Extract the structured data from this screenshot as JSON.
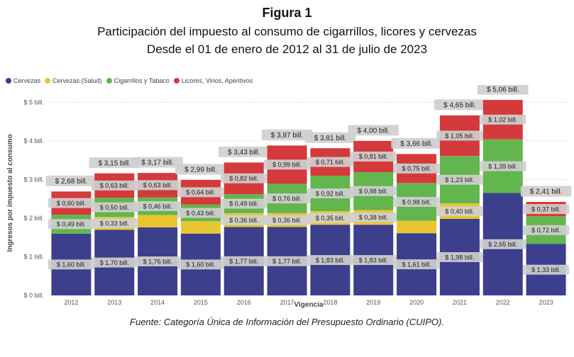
{
  "figure_label": "Figura 1",
  "title": "Participación del impuesto al consumo de cigarrillos, licores y cervezas",
  "subtitle": "Desde el 01 de enero de 2012 al 31 de julio de 2023",
  "source": "Fuente: Categoría Única de Información del Presupuesto Ordinario (CUIPO).",
  "chart_data": {
    "type": "bar",
    "stacked": true,
    "xlabel": "Vigencia",
    "ylabel": "Ingresos por impuesto al consumo",
    "ylim": [
      0,
      5.3
    ],
    "yticks": [
      0,
      1,
      2,
      3,
      4,
      5
    ],
    "ytick_labels": [
      "$ 0 bill.",
      "$ 1 bill.",
      "$ 2 bill.",
      "$ 3 bill.",
      "$ 4 bill.",
      "$ 5 bill."
    ],
    "grid": true,
    "legend_position": "top-left",
    "categories": [
      "2012",
      "2013",
      "2014",
      "2015",
      "2016",
      "2017",
      "2018",
      "2019",
      "2020",
      "2021",
      "2022",
      "2023"
    ],
    "series": [
      {
        "name": "Cervezas",
        "color": "#3b3f8c",
        "values": [
          1.6,
          1.7,
          1.76,
          1.6,
          1.77,
          1.77,
          1.83,
          1.83,
          1.61,
          1.98,
          2.65,
          1.33
        ],
        "labels": [
          "$ 1,60 bill.",
          "$ 1,70 bill.",
          "$ 1,76 bill.",
          "$ 1,60 bill.",
          "$ 1,77 bill.",
          "$ 1,77 bill.",
          "$ 1,83 bill.",
          "$ 1,83 bill.",
          "$ 1,61 bill.",
          "$ 1,98 bill.",
          "$ 2,65 bill.",
          "$ 1,33 bill."
        ]
      },
      {
        "name": "Cervezas (Salud)",
        "color": "#e9c631",
        "values": [
          0.0,
          0.33,
          0.32,
          0.32,
          0.36,
          0.36,
          0.35,
          0.38,
          0.32,
          0.4,
          0.0,
          0.0
        ],
        "labels": [
          "",
          "$ 0,33 bill.",
          "",
          "",
          "$ 0,36 bill.",
          "$ 0,36 bill.",
          "$ 0,35 bill.",
          "$ 0,38 bill.",
          "",
          "$ 0,40 bill.",
          "",
          ""
        ]
      },
      {
        "name": "Cigarrillos y Tabaco",
        "color": "#63b54e",
        "values": [
          0.49,
          0.5,
          0.46,
          0.43,
          0.49,
          0.76,
          0.92,
          0.98,
          0.98,
          1.23,
          1.39,
          0.72
        ],
        "labels": [
          "$ 0,49 bill.",
          "$ 0,50 bill.",
          "$ 0,46 bill.",
          "$ 0,43 bill.",
          "$ 0,49 bill.",
          "$ 0,76 bill.",
          "$ 0,92 bill.",
          "$ 0,98 bill.",
          "$ 0,98 bill.",
          "$ 1,23 bill.",
          "$ 1,39 bill.",
          "$ 0,72 bill."
        ]
      },
      {
        "name": "Licores, Vinos, Aperitivos",
        "color": "#d43a3c",
        "values": [
          0.6,
          0.63,
          0.63,
          0.64,
          0.82,
          0.99,
          0.71,
          0.81,
          0.75,
          1.05,
          1.02,
          0.37
        ],
        "labels": [
          "$ 0,60 bill.",
          "$ 0,63 bill.",
          "$ 0,63 bill.",
          "$ 0,64 bill.",
          "$ 0,82 bill.",
          "$ 0,99 bill.",
          "$ 0,71 bill.",
          "$ 0,81 bill.",
          "$ 0,75 bill.",
          "$ 1,05 bill.",
          "$ 1,02 bill.",
          "$ 0,37 bill."
        ]
      }
    ],
    "totals": [
      2.68,
      3.15,
      3.17,
      2.99,
      3.43,
      3.87,
      3.81,
      4.0,
      3.66,
      4.65,
      5.06,
      2.41
    ],
    "total_labels": [
      "$ 2,68 bill.",
      "$ 3,15 bill.",
      "$ 3,17 bill.",
      "$ 2,99 bill.",
      "$ 3,43 bill.",
      "$ 3,87 bill.",
      "$ 3,81 bill.",
      "$ 4,00 bill.",
      "$ 3,66 bill.",
      "$ 4,65 bill.",
      "$ 5,06 bill.",
      "$ 2,41 bill."
    ]
  }
}
